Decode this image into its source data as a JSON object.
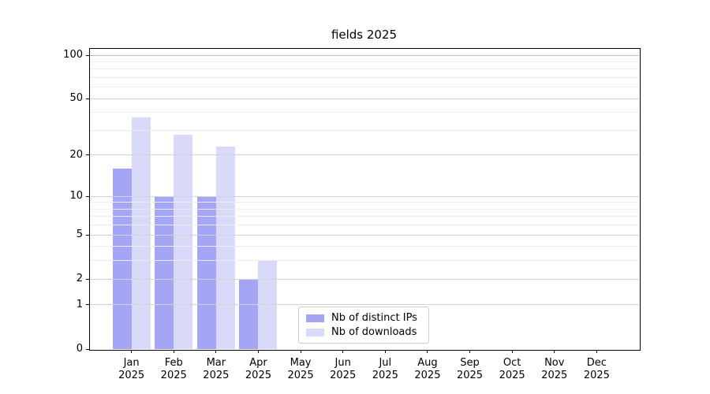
{
  "chart_data": {
    "type": "bar",
    "title": "fields 2025",
    "categories": [
      "Jan",
      "Feb",
      "Mar",
      "Apr",
      "May",
      "Jun",
      "Jul",
      "Aug",
      "Sep",
      "Oct",
      "Nov",
      "Dec"
    ],
    "x_tick_year": "2025",
    "series": [
      {
        "name": "Nb of distinct IPs",
        "color": "#a5a5f5",
        "values": [
          16,
          10,
          10,
          2,
          0,
          0,
          0,
          0,
          0,
          0,
          0,
          0
        ]
      },
      {
        "name": "Nb of downloads",
        "color": "#d9d9f9",
        "values": [
          37,
          28,
          23,
          3,
          0,
          0,
          0,
          0,
          0,
          0,
          0,
          0
        ]
      }
    ],
    "xlabel": "",
    "ylabel": "",
    "yscale": "log1p",
    "ylim": [
      0,
      112
    ],
    "y_major_ticks": [
      0,
      1,
      2,
      5,
      10,
      20,
      50,
      100
    ],
    "y_minor_gridlines": [
      3,
      4,
      6,
      7,
      8,
      9,
      30,
      40,
      60,
      70,
      80,
      90
    ],
    "grid": "on",
    "grid_above_bars": true,
    "legend_position": "inside-bottom-center",
    "colors": {
      "grid_major": "#d2d2d2",
      "grid_minor": "#ececec",
      "grid_emphasis": "#bdbdbd",
      "axis": "#000000",
      "text": "#000000",
      "legend_border": "#cccccc",
      "background": "#ffffff"
    }
  }
}
